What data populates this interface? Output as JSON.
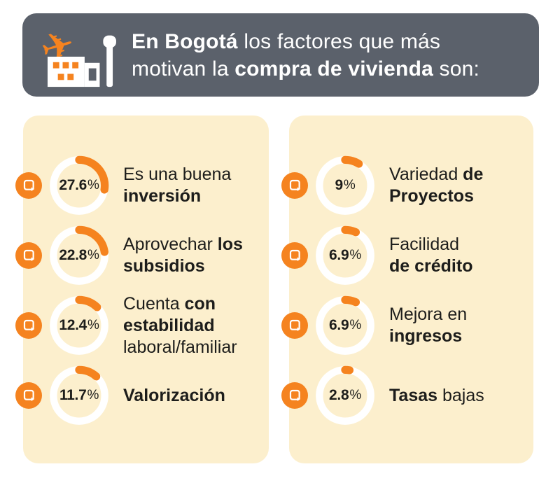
{
  "header": {
    "runs": [
      {
        "t": "En Bogotá ",
        "b": true
      },
      {
        "t": "los factores que más",
        "b": false
      },
      {
        "t": "motivan la ",
        "b": false,
        "nl": true
      },
      {
        "t": "compra de vivienda",
        "b": true
      },
      {
        "t": " son:",
        "b": false
      }
    ],
    "icon": "airport-icon"
  },
  "colors": {
    "orange": "#F5831F",
    "panel_bg": "#FCEFCD",
    "header_bg": "#5B616B",
    "text_dark": "#1D1D1B",
    "ring_white": "#FFFFFF"
  },
  "panels": [
    {
      "id": "left",
      "items": [
        {
          "pct": "27.6%",
          "value": 27.6,
          "runs": [
            {
              "t": "Es una buena",
              "b": false
            },
            {
              "t": "inversión",
              "b": true,
              "nl": true
            }
          ]
        },
        {
          "pct": "22.8%",
          "value": 22.8,
          "runs": [
            {
              "t": "Aprovechar ",
              "b": false
            },
            {
              "t": "los",
              "b": true
            },
            {
              "t": "subsidios",
              "b": true,
              "nl": true
            }
          ]
        },
        {
          "pct": "12.4%",
          "value": 12.4,
          "runs": [
            {
              "t": "Cuenta ",
              "b": false
            },
            {
              "t": "con",
              "b": true
            },
            {
              "t": "estabilidad",
              "b": true,
              "nl": true
            },
            {
              "t": "laboral/familiar",
              "b": false,
              "nl": true
            }
          ]
        },
        {
          "pct": "11.7%",
          "value": 11.7,
          "runs": [
            {
              "t": "Valorización",
              "b": true
            }
          ]
        }
      ]
    },
    {
      "id": "right",
      "items": [
        {
          "pct": "9%",
          "value": 9,
          "runs": [
            {
              "t": "Variedad ",
              "b": false
            },
            {
              "t": "de",
              "b": true
            },
            {
              "t": "Proyectos",
              "b": true,
              "nl": true
            }
          ]
        },
        {
          "pct": "6.9%",
          "value": 6.9,
          "runs": [
            {
              "t": "Facilidad",
              "b": false
            },
            {
              "t": "de crédito",
              "b": true,
              "nl": true
            }
          ]
        },
        {
          "pct": "6.9%",
          "value": 6.9,
          "runs": [
            {
              "t": "Mejora en",
              "b": false
            },
            {
              "t": "ingresos",
              "b": true,
              "nl": true
            }
          ]
        },
        {
          "pct": "2.8%",
          "value": 2.8,
          "runs": [
            {
              "t": "Tasas",
              "b": true
            },
            {
              "t": " bajas",
              "b": false
            }
          ]
        }
      ]
    }
  ],
  "chart_data": {
    "type": "pie",
    "title": "En Bogotá los factores que más motivan la compra de vivienda son:",
    "categories": [
      "Es una buena inversión",
      "Aprovechar los subsidios",
      "Cuenta con estabilidad laboral/familiar",
      "Valorización",
      "Variedad de Proyectos",
      "Facilidad de crédito",
      "Mejora en ingresos",
      "Tasas bajas"
    ],
    "values": [
      27.6,
      22.8,
      12.4,
      11.7,
      9,
      6.9,
      6.9,
      2.8
    ],
    "unit": "%",
    "accent_color": "#F5831F",
    "legend_position": "none",
    "note": "each value shown as an individual donut gauge starting at 12 o'clock, clockwise"
  }
}
